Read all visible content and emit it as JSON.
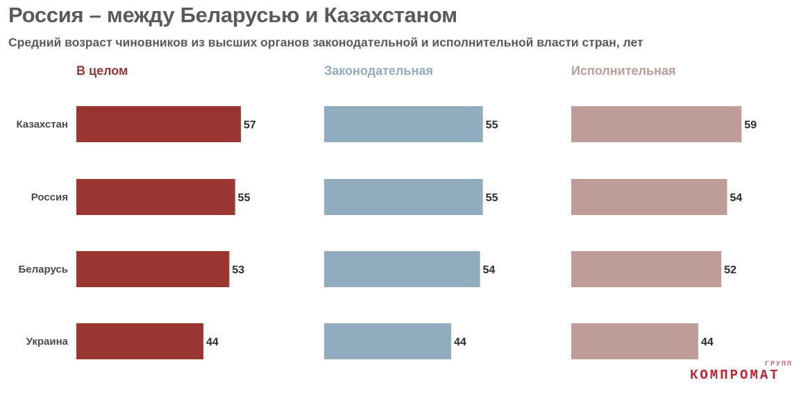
{
  "title": "Россия – между Беларусью и Казахстаном",
  "subtitle": "Средний возраст чиновников из высших органов законодательной и исполнительной власти стран, лет",
  "logo": {
    "main": "КОМПРОМАТ",
    "sub": "ГРУПП"
  },
  "chart_data": {
    "type": "bar",
    "orientation": "horizontal",
    "categories": [
      "Казахстан",
      "Россия",
      "Беларусь",
      "Украина"
    ],
    "series": [
      {
        "name": "В целом",
        "color": "#9b3530",
        "values": [
          57,
          55,
          53,
          44
        ]
      },
      {
        "name": "Законодательная",
        "color": "#8fadbd",
        "values": [
          55,
          55,
          54,
          44
        ]
      },
      {
        "name": "Исполнительная",
        "color": "#be9d98",
        "values": [
          59,
          54,
          52,
          44
        ]
      }
    ],
    "title": "Россия – между Беларусью и Казахстаном",
    "subtitle": "Средний возраст чиновников из высших органов законодательной и исполнительной власти стран, лет",
    "xlabel": "",
    "ylabel": "",
    "grid": false,
    "legend": "panel-titles"
  }
}
